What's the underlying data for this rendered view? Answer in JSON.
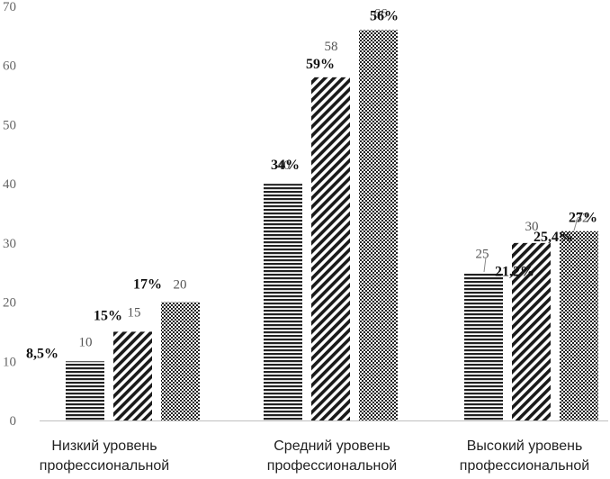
{
  "chart_data": {
    "type": "bar",
    "title": "",
    "xlabel": "",
    "ylabel": "",
    "ylim": [
      0,
      70
    ],
    "yticks": [
      "0",
      "10",
      "20",
      "30",
      "40",
      "50",
      "60",
      "70"
    ],
    "grid": false,
    "legend": "none",
    "categories": [
      [
        "Низкий уровень",
        "профессиональной"
      ],
      [
        "Средний уровень",
        "профессиональной"
      ],
      [
        "Высокий уровень",
        "профессиональной"
      ]
    ],
    "series": [
      {
        "name": "series-1",
        "pattern": "horizontal-lines",
        "values": [
          10,
          40,
          25
        ],
        "percent_labels": [
          "8,5%",
          "34%",
          "21,2%"
        ]
      },
      {
        "name": "series-2",
        "pattern": "diagonal-lines",
        "values": [
          15,
          58,
          30
        ],
        "percent_labels": [
          "15%",
          "59%",
          "25,4%"
        ]
      },
      {
        "name": "series-3",
        "pattern": "checkered",
        "values": [
          20,
          66,
          32
        ],
        "percent_labels": [
          "17%",
          "56%",
          "27%"
        ]
      }
    ],
    "colors": {
      "bar_ink": "#222222",
      "axis": "#bfbfbf",
      "tick_text": "#666666"
    }
  }
}
